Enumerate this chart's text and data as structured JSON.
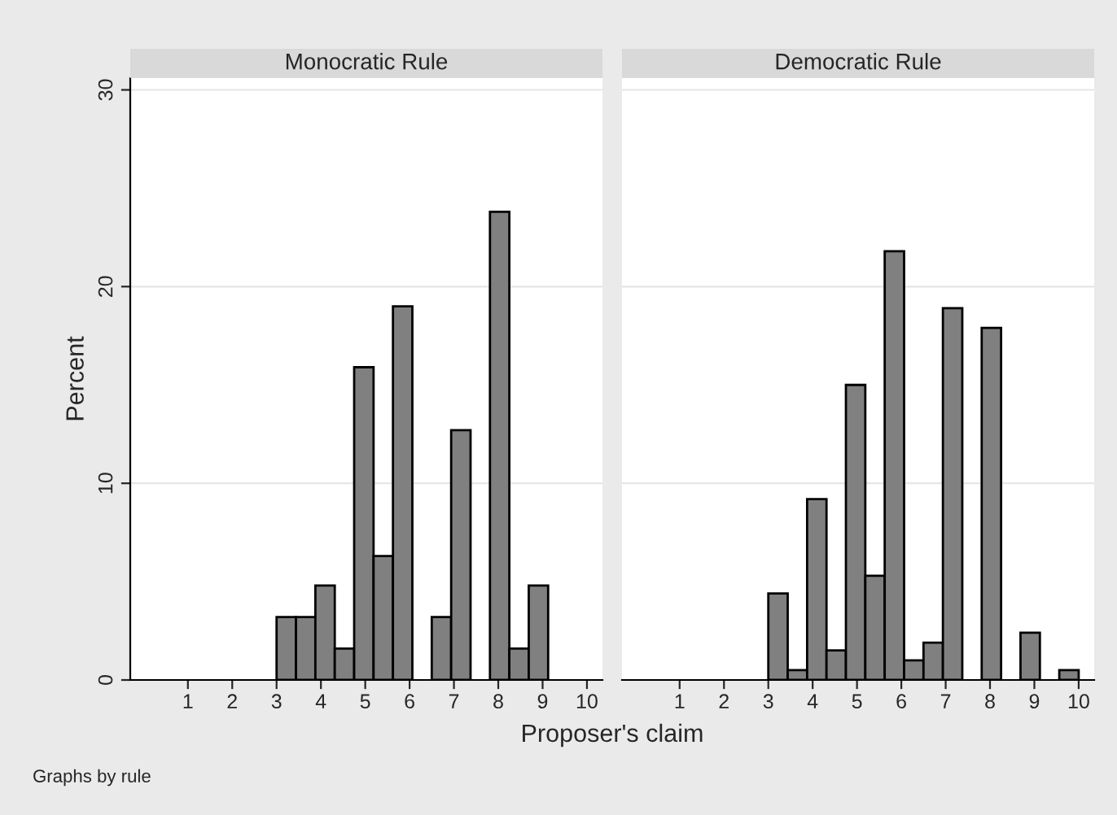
{
  "chart_data": [
    {
      "type": "histogram",
      "title": "Monocratic Rule",
      "xlabel": "Proposer's claim",
      "ylabel": "Percent",
      "annotations": [
        "Graphs by rule"
      ],
      "bins": [
        3,
        3.4375,
        3.875,
        4.3125,
        4.75,
        5.1875,
        5.625,
        6.0625,
        6.5,
        6.9375,
        7.375,
        7.8125,
        8.25,
        8.6875,
        9.125,
        9.5625,
        10
      ],
      "values": [
        3.2,
        3.2,
        4.8,
        1.6,
        15.9,
        6.3,
        19.0,
        0,
        3.2,
        12.7,
        0,
        23.8,
        1.6,
        4.8,
        0,
        0
      ],
      "color": "#808080",
      "xlim": [
        -0.3,
        10.35
      ],
      "ylim": [
        0,
        30.6
      ],
      "xticks": [
        1,
        2,
        3,
        4,
        5,
        6,
        7,
        8,
        9,
        10
      ],
      "yticks": [
        0,
        10,
        20,
        30
      ],
      "grid": "y"
    },
    {
      "type": "histogram",
      "title": "Democratic Rule",
      "bins": [
        3,
        3.4375,
        3.875,
        4.3125,
        4.75,
        5.1875,
        5.625,
        6.0625,
        6.5,
        6.9375,
        7.375,
        7.8125,
        8.25,
        8.6875,
        9.125,
        9.5625,
        10
      ],
      "values": [
        4.4,
        0.5,
        9.2,
        1.5,
        15.0,
        5.3,
        21.8,
        1.0,
        1.9,
        18.9,
        0,
        17.9,
        0,
        2.4,
        0,
        0.5
      ],
      "color": "#808080",
      "xlim": [
        -0.3,
        10.35
      ],
      "ylim": [
        0,
        30.6
      ],
      "xticks": [
        1,
        2,
        3,
        4,
        5,
        6,
        7,
        8,
        9,
        10
      ],
      "yticks": [
        0,
        10,
        20,
        30
      ],
      "grid": "y",
      "tick_labels": "x"
    }
  ]
}
